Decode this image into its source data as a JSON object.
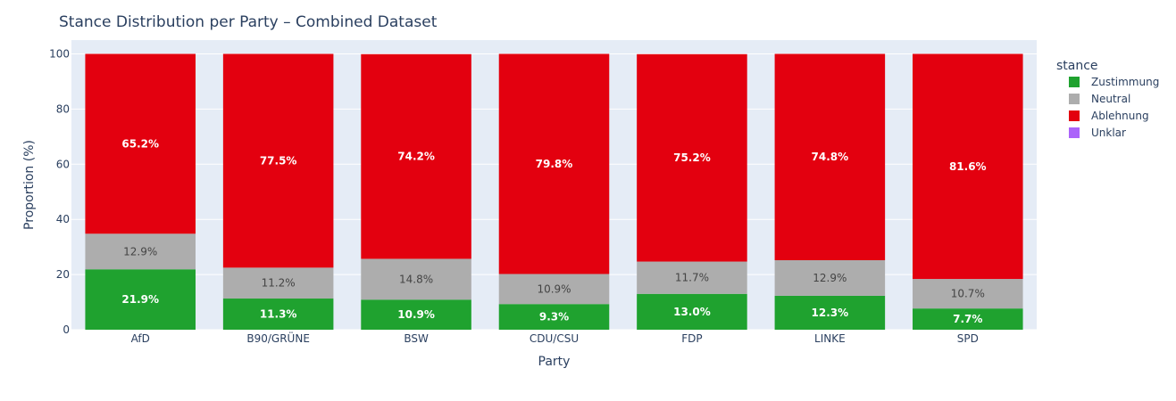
{
  "chart_data": {
    "type": "bar",
    "stacked": true,
    "title": "Stance Distribution per Party – Combined Dataset",
    "xlabel": "Party",
    "ylabel": "Proportion (%)",
    "ylim": [
      0,
      105
    ],
    "yticks": [
      0,
      20,
      40,
      60,
      80,
      100
    ],
    "grid": true,
    "legend_title": "stance",
    "legend_position": "top-right",
    "categories": [
      "AfD",
      "B90/GRÜNE",
      "BSW",
      "CDU/CSU",
      "FDP",
      "LINKE",
      "SPD"
    ],
    "series": [
      {
        "name": "Zustimmung",
        "color": "#1fa22f",
        "label_color": "#ffffff",
        "values": [
          21.9,
          11.3,
          10.9,
          9.3,
          13.0,
          12.3,
          7.7
        ],
        "labels": [
          "21.9%",
          "11.3%",
          "10.9%",
          "9.3%",
          "13.0%",
          "12.3%",
          "7.7%"
        ]
      },
      {
        "name": "Neutral",
        "color": "#adadad",
        "label_color": "#444444",
        "values": [
          12.9,
          11.2,
          14.8,
          10.9,
          11.7,
          12.9,
          10.7
        ],
        "labels": [
          "12.9%",
          "11.2%",
          "14.8%",
          "10.9%",
          "11.7%",
          "12.9%",
          "10.7%"
        ]
      },
      {
        "name": "Ablehnung",
        "color": "#e3000f",
        "label_color": "#ffffff",
        "values": [
          65.2,
          77.5,
          74.2,
          79.8,
          75.2,
          74.8,
          81.6
        ],
        "labels": [
          "65.2%",
          "77.5%",
          "74.2%",
          "79.8%",
          "75.2%",
          "74.8%",
          "81.6%"
        ]
      },
      {
        "name": "Unklar",
        "color": "#ab63fa",
        "label_color": "#ffffff",
        "values": [
          0,
          0,
          0,
          0,
          0,
          0,
          0
        ],
        "labels": [
          "",
          "",
          "",
          "",
          "",
          "",
          ""
        ]
      }
    ]
  },
  "colors": {
    "plot_bg": "#e5ecf6",
    "grid": "#ffffff",
    "text": "#2a3f5f"
  }
}
